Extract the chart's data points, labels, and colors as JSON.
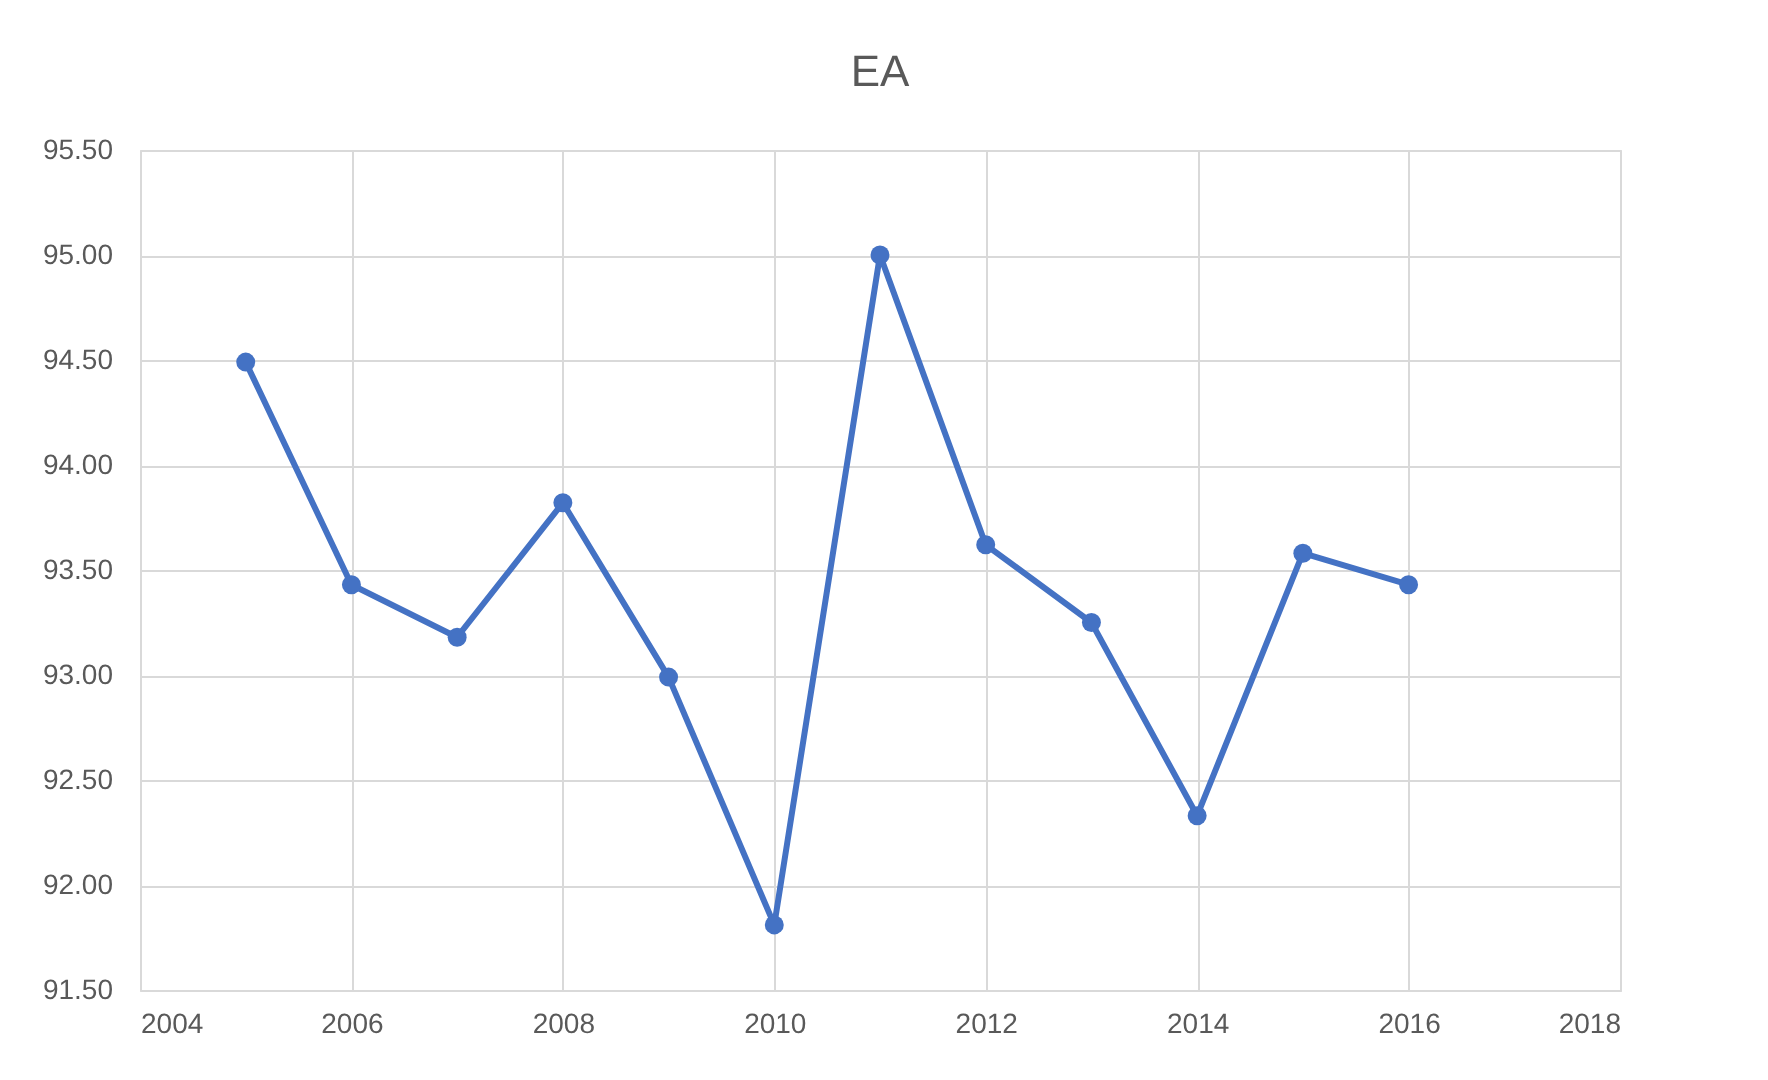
{
  "chart_data": {
    "type": "line",
    "title": "EA",
    "x": [
      2005,
      2006,
      2007,
      2008,
      2009,
      2010,
      2011,
      2012,
      2013,
      2014,
      2015,
      2016
    ],
    "series": [
      {
        "color": "#4472c4",
        "values": [
          94.49,
          93.43,
          93.18,
          93.82,
          92.99,
          91.81,
          95.0,
          93.62,
          93.25,
          92.33,
          93.58,
          93.43
        ]
      }
    ],
    "xlim": [
      2004,
      2018
    ],
    "xticks": [
      2004,
      2006,
      2008,
      2010,
      2012,
      2014,
      2016,
      2018
    ],
    "ylim": [
      91.5,
      95.5
    ],
    "yticks": [
      {
        "value": 91.5,
        "label": "91.50"
      },
      {
        "value": 92,
        "label": "92.00"
      },
      {
        "value": 92.5,
        "label": "92.50"
      },
      {
        "value": 93,
        "label": "93.00"
      },
      {
        "value": 93.5,
        "label": "93.50"
      },
      {
        "value": 94,
        "label": "94.00"
      },
      {
        "value": 94.5,
        "label": "94.50"
      },
      {
        "value": 95,
        "label": "95.00"
      },
      {
        "value": 95.5,
        "label": "95.50"
      }
    ],
    "grid": true,
    "marker": "circle",
    "line_style": "solid"
  }
}
